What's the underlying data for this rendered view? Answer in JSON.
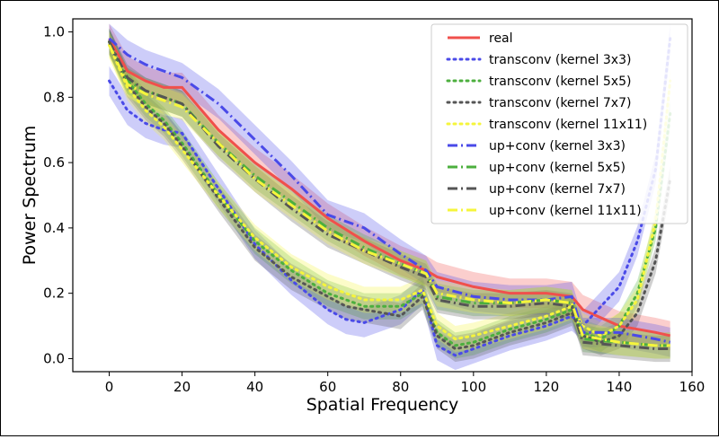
{
  "chart_data": {
    "type": "line",
    "title": "",
    "xlabel": "Spatial Frequency",
    "ylabel": "Power Spectrum",
    "xlim": [
      -10,
      160
    ],
    "ylim": [
      -0.04,
      1.04
    ],
    "xticks": [
      0,
      20,
      40,
      60,
      80,
      100,
      120,
      140,
      160
    ],
    "yticks": [
      0.0,
      0.2,
      0.4,
      0.6,
      0.8,
      1.0
    ],
    "xtick_labels": [
      "0",
      "20",
      "40",
      "60",
      "80",
      "100",
      "120",
      "140",
      "160"
    ],
    "ytick_labels": [
      "0.0",
      "0.2",
      "0.4",
      "0.6",
      "0.8",
      "1.0"
    ],
    "grid": false,
    "legend_position": "top-right",
    "series": [
      {
        "name": "real",
        "color": "#f0504c",
        "style": "solid",
        "band": 0.045,
        "x": [
          0,
          5,
          10,
          15,
          20,
          30,
          40,
          50,
          60,
          70,
          80,
          87,
          90,
          100,
          110,
          120,
          127,
          130,
          140,
          150,
          154
        ],
        "y": [
          0.98,
          0.88,
          0.85,
          0.83,
          0.83,
          0.7,
          0.6,
          0.52,
          0.43,
          0.36,
          0.3,
          0.27,
          0.25,
          0.22,
          0.2,
          0.2,
          0.19,
          0.15,
          0.1,
          0.08,
          0.07
        ]
      },
      {
        "name": "transconv (kernel 3x3)",
        "color": "#4a4ae8",
        "style": "dotted",
        "band": 0.045,
        "x": [
          0,
          5,
          10,
          15,
          20,
          30,
          40,
          50,
          60,
          65,
          70,
          80,
          86,
          90,
          95,
          100,
          110,
          120,
          127,
          130,
          135,
          140,
          145,
          150,
          154
        ],
        "y": [
          0.85,
          0.76,
          0.72,
          0.7,
          0.69,
          0.52,
          0.35,
          0.24,
          0.15,
          0.12,
          0.11,
          0.15,
          0.21,
          0.04,
          0.01,
          0.03,
          0.07,
          0.1,
          0.13,
          0.1,
          0.16,
          0.22,
          0.36,
          0.58,
          0.98
        ]
      },
      {
        "name": "transconv (kernel 5x5)",
        "color": "#4caf3e",
        "style": "dotted",
        "band": 0.04,
        "x": [
          0,
          5,
          10,
          15,
          20,
          30,
          40,
          50,
          60,
          65,
          70,
          80,
          86,
          90,
          95,
          100,
          110,
          120,
          127,
          130,
          135,
          140,
          145,
          150,
          154
        ],
        "y": [
          0.97,
          0.85,
          0.78,
          0.73,
          0.66,
          0.5,
          0.36,
          0.27,
          0.2,
          0.18,
          0.16,
          0.16,
          0.2,
          0.08,
          0.04,
          0.05,
          0.09,
          0.12,
          0.15,
          0.08,
          0.06,
          0.1,
          0.2,
          0.4,
          0.75
        ]
      },
      {
        "name": "transconv (kernel 7x7)",
        "color": "#555555",
        "style": "dotted",
        "band": 0.04,
        "x": [
          0,
          5,
          10,
          15,
          20,
          30,
          40,
          50,
          60,
          65,
          70,
          80,
          86,
          90,
          95,
          100,
          110,
          120,
          127,
          130,
          135,
          140,
          145,
          150,
          154
        ],
        "y": [
          0.97,
          0.84,
          0.77,
          0.72,
          0.65,
          0.49,
          0.34,
          0.25,
          0.19,
          0.16,
          0.15,
          0.13,
          0.19,
          0.07,
          0.03,
          0.04,
          0.08,
          0.11,
          0.14,
          0.07,
          0.05,
          0.07,
          0.14,
          0.3,
          0.55
        ]
      },
      {
        "name": "transconv (kernel 11x11)",
        "color": "#f5f53c",
        "style": "dotted",
        "band": 0.04,
        "x": [
          0,
          5,
          10,
          15,
          20,
          30,
          40,
          50,
          60,
          65,
          70,
          80,
          86,
          90,
          95,
          100,
          110,
          120,
          127,
          130,
          135,
          140,
          145,
          150,
          154
        ],
        "y": [
          0.96,
          0.83,
          0.76,
          0.71,
          0.64,
          0.5,
          0.37,
          0.28,
          0.22,
          0.2,
          0.18,
          0.18,
          0.21,
          0.1,
          0.06,
          0.07,
          0.1,
          0.13,
          0.16,
          0.1,
          0.07,
          0.1,
          0.18,
          0.42,
          0.85
        ]
      },
      {
        "name": "up+conv (kernel 3x3)",
        "color": "#4a4ae8",
        "style": "dashdot",
        "band": 0.045,
        "x": [
          0,
          5,
          10,
          15,
          20,
          30,
          40,
          50,
          60,
          70,
          80,
          87,
          90,
          100,
          110,
          120,
          127,
          130,
          140,
          150,
          154
        ],
        "y": [
          0.98,
          0.93,
          0.9,
          0.88,
          0.86,
          0.78,
          0.67,
          0.56,
          0.44,
          0.4,
          0.32,
          0.27,
          0.22,
          0.19,
          0.18,
          0.18,
          0.19,
          0.08,
          0.08,
          0.06,
          0.05
        ]
      },
      {
        "name": "up+conv (kernel 5x5)",
        "color": "#4caf3e",
        "style": "dashdot",
        "band": 0.04,
        "x": [
          0,
          5,
          10,
          15,
          20,
          30,
          40,
          50,
          60,
          70,
          80,
          87,
          90,
          100,
          110,
          120,
          127,
          130,
          140,
          150,
          154
        ],
        "y": [
          0.97,
          0.85,
          0.82,
          0.8,
          0.78,
          0.66,
          0.56,
          0.48,
          0.4,
          0.34,
          0.29,
          0.26,
          0.19,
          0.17,
          0.17,
          0.18,
          0.17,
          0.06,
          0.05,
          0.04,
          0.04
        ]
      },
      {
        "name": "up+conv (kernel 7x7)",
        "color": "#555555",
        "style": "dashdot",
        "band": 0.04,
        "x": [
          0,
          5,
          10,
          15,
          20,
          30,
          40,
          50,
          60,
          70,
          80,
          87,
          90,
          100,
          110,
          120,
          127,
          130,
          140,
          150,
          154
        ],
        "y": [
          0.97,
          0.86,
          0.82,
          0.8,
          0.78,
          0.65,
          0.55,
          0.46,
          0.38,
          0.33,
          0.28,
          0.25,
          0.18,
          0.16,
          0.16,
          0.17,
          0.16,
          0.05,
          0.04,
          0.03,
          0.03
        ]
      },
      {
        "name": "up+conv (kernel 11x11)",
        "color": "#f5f53c",
        "style": "dashdot",
        "band": 0.04,
        "x": [
          0,
          5,
          10,
          15,
          20,
          30,
          40,
          50,
          60,
          70,
          80,
          87,
          90,
          100,
          110,
          120,
          127,
          130,
          140,
          150,
          154
        ],
        "y": [
          0.96,
          0.84,
          0.81,
          0.79,
          0.77,
          0.66,
          0.55,
          0.47,
          0.39,
          0.33,
          0.29,
          0.26,
          0.2,
          0.18,
          0.17,
          0.18,
          0.17,
          0.07,
          0.05,
          0.04,
          0.04
        ]
      }
    ]
  }
}
